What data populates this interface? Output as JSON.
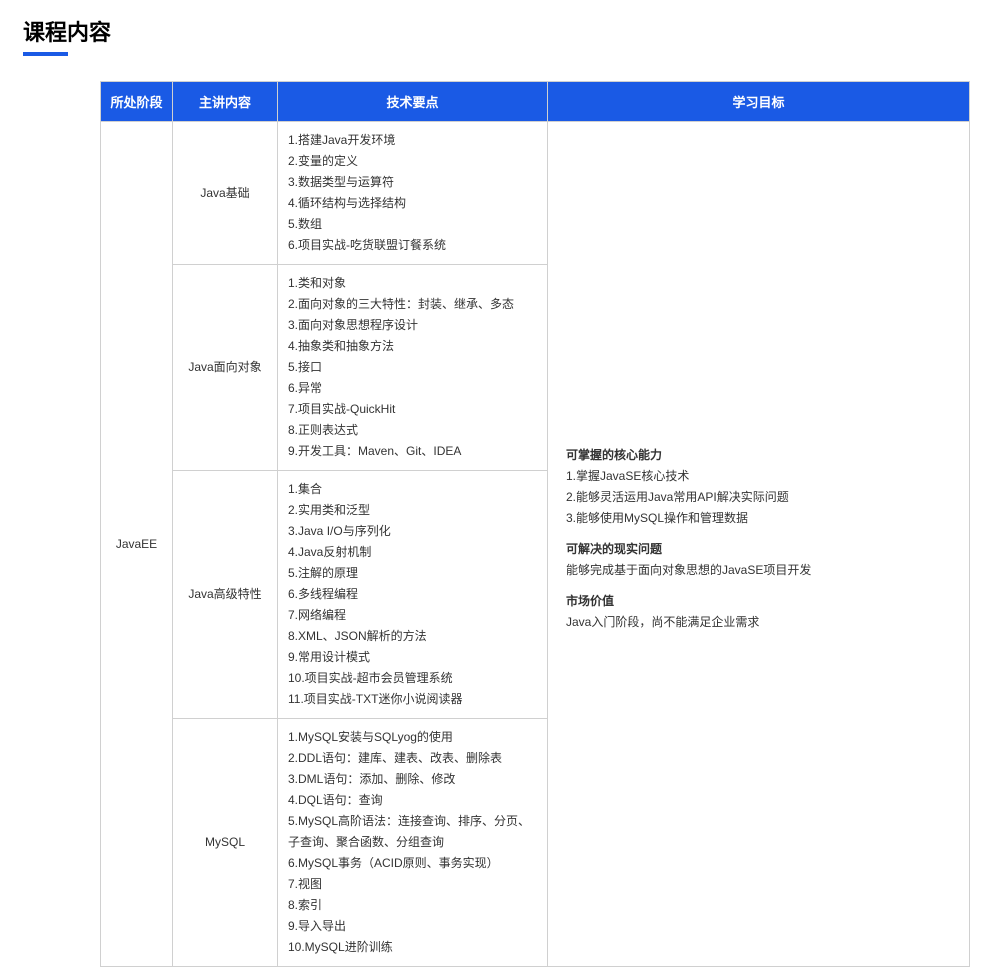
{
  "page": {
    "title": "课程内容"
  },
  "table": {
    "headers": {
      "stage": "所处阶段",
      "topic": "主讲内容",
      "points": "技术要点",
      "goal": "学习目标"
    },
    "stage_label": "JavaEE",
    "rows": [
      {
        "topic": "Java基础",
        "points": [
          "1.搭建Java开发环境",
          "2.变量的定义",
          "3.数据类型与运算符",
          "4.循环结构与选择结构",
          "5.数组",
          "6.项目实战-吃货联盟订餐系统"
        ]
      },
      {
        "topic": "Java面向对象",
        "points": [
          "1.类和对象",
          "2.面向对象的三大特性：封装、继承、多态",
          "3.面向对象思想程序设计",
          "4.抽象类和抽象方法",
          "5.接口",
          "6.异常",
          "7.项目实战-QuickHit",
          "8.正则表达式",
          "9.开发工具：Maven、Git、IDEA"
        ]
      },
      {
        "topic": "Java高级特性",
        "points": [
          "1.集合",
          "2.实用类和泛型",
          "3.Java I/O与序列化",
          "4.Java反射机制",
          "5.注解的原理",
          "6.多线程编程",
          "7.网络编程",
          "8.XML、JSON解析的方法",
          "9.常用设计模式",
          "10.项目实战-超市会员管理系统",
          "11.项目实战-TXT迷你小说阅读器"
        ]
      },
      {
        "topic": "MySQL",
        "points": [
          "1.MySQL安装与SQLyog的使用",
          "2.DDL语句：建库、建表、改表、删除表",
          "3.DML语句：添加、删除、修改",
          "4.DQL语句：查询",
          "5.MySQL高阶语法：连接查询、排序、分页、子查询、聚合函数、分组查询",
          "6.MySQL事务（ACID原则、事务实现）",
          "7.视图",
          "8.索引",
          "9.导入导出",
          "10.MySQL进阶训练"
        ]
      }
    ],
    "goal": {
      "core_heading": "可掌握的核心能力",
      "core_items": [
        "1.掌握JavaSE核心技术",
        "2.能够灵活运用Java常用API解决实际问题",
        "3.能够使用MySQL操作和管理数据"
      ],
      "problem_heading": "可解决的现实问题",
      "problem_text": "能够完成基于面向对象思想的JavaSE项目开发",
      "market_heading": "市场价值",
      "market_text": "Java入门阶段，尚不能满足企业需求"
    }
  },
  "colors": {
    "primary": "#1a5ae5",
    "border": "#d0d0d0",
    "text": "#333333",
    "background": "#ffffff"
  }
}
